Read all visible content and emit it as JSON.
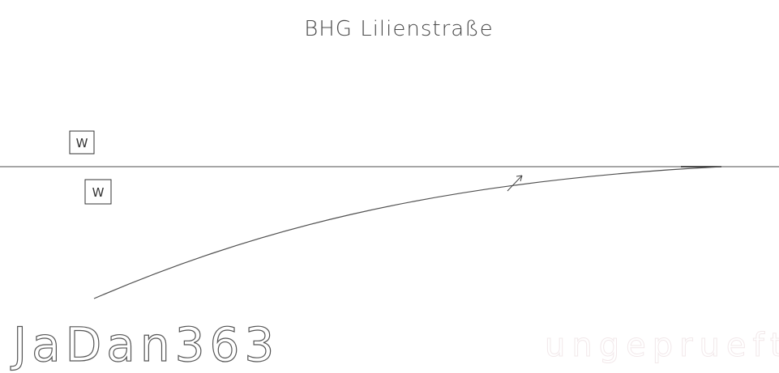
{
  "title": "BHG Lilienstraße",
  "markers": [
    {
      "label": "W"
    },
    {
      "label": "W"
    }
  ],
  "author": "JaDan363",
  "watermark": "ungeprueft",
  "colors": {
    "line": "#707070",
    "curve": "#505050",
    "text": "#4a4a4a",
    "watermark": "#f2e8ea"
  }
}
